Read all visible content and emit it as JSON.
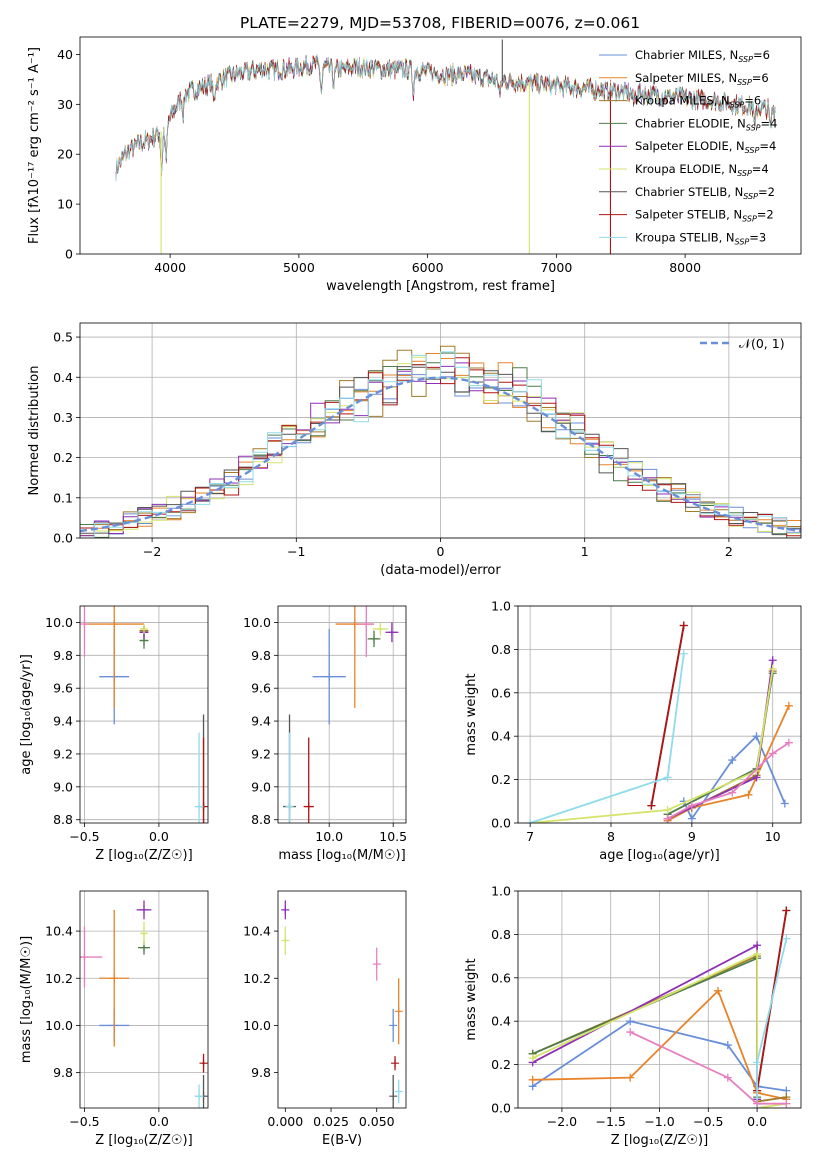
{
  "colors": {
    "c0": "#6a8fd9",
    "c1": "#e8832a",
    "c2": "#a17a2a",
    "c3": "#4f7d4a",
    "c4": "#8e2fb5",
    "c5": "#d6e36a",
    "c6": "#555555",
    "c7": "#b01515",
    "c8": "#8fdcea",
    "c9": "#e77fbf",
    "spectrum": [
      "#6a8fd9",
      "#e8832a",
      "#a17a2a",
      "#4f7d4a",
      "#8e2fb5",
      "#d6e36a",
      "#555555",
      "#b01515",
      "#8fdcea"
    ]
  },
  "chart_data": [
    {
      "id": "spectrum",
      "type": "line",
      "title": "PLATE=2279, MJD=53708, FIBERID=0076, z=0.061",
      "xlabel": "wavelength [Angstrom, rest frame]",
      "ylabel": "Flux [fλ10⁻¹⁷ erg cm⁻² s⁻¹ A⁻¹]",
      "xlim": [
        3300,
        8900
      ],
      "ylim": [
        0,
        43.5
      ],
      "xticks": [
        "4000",
        "5000",
        "6000",
        "7000",
        "8000"
      ],
      "yticks": [
        "0",
        "10",
        "20",
        "30",
        "40"
      ],
      "grid": false,
      "legend_position": "top-right",
      "legend": [
        "Chabrier MILES, N_SSP=6",
        "Salpeter MILES, N_SSP=6",
        "Kroupa MILES, N_SSP=6",
        "Chabrier ELODIE, N_SSP=4",
        "Salpeter ELODIE, N_SSP=4",
        "Kroupa ELODIE, N_SSP=4",
        "Chabrier STELIB, N_SSP=2",
        "Salpeter STELIB, N_SSP=2",
        "Kroupa STELIB, N_SSP=3"
      ],
      "continuum": [
        [
          3580,
          17
        ],
        [
          3650,
          20
        ],
        [
          3750,
          22
        ],
        [
          3850,
          23
        ],
        [
          3950,
          25
        ],
        [
          4100,
          32
        ],
        [
          4300,
          34
        ],
        [
          4500,
          36
        ],
        [
          4700,
          37
        ],
        [
          4900,
          37
        ],
        [
          5100,
          38
        ],
        [
          5300,
          37
        ],
        [
          5500,
          37.5
        ],
        [
          5700,
          37
        ],
        [
          5900,
          37
        ],
        [
          6100,
          36
        ],
        [
          6300,
          36
        ],
        [
          6500,
          35
        ],
        [
          6700,
          34.5
        ],
        [
          6900,
          34
        ],
        [
          7100,
          33.5
        ],
        [
          7300,
          33
        ],
        [
          7500,
          32.5
        ],
        [
          7700,
          32
        ],
        [
          7900,
          31.5
        ],
        [
          8100,
          31
        ],
        [
          8300,
          30.5
        ],
        [
          8500,
          29.5
        ],
        [
          8700,
          29
        ]
      ],
      "absorption_lines": [
        [
          3934,
          8
        ],
        [
          3969,
          7
        ],
        [
          4102,
          4
        ],
        [
          4340,
          4
        ],
        [
          5175,
          5
        ],
        [
          5270,
          3
        ],
        [
          5890,
          4
        ],
        [
          6563,
          3
        ],
        [
          7600,
          2
        ],
        [
          8542,
          4
        ],
        [
          8662,
          4
        ]
      ],
      "sharp_features": [
        [
          3930,
          0,
          "#d6e36a"
        ],
        [
          6790,
          0,
          "#d6e36a"
        ],
        [
          7420,
          0,
          "#b01515"
        ],
        [
          6580,
          43,
          "#555555"
        ]
      ]
    },
    {
      "id": "residuals",
      "type": "histogram",
      "xlabel": "(data-model)/error",
      "ylabel": "Normed distribution",
      "xlim": [
        -2.5,
        2.5
      ],
      "ylim": [
        0,
        0.535
      ],
      "xticks": [
        "−2",
        "−1",
        "0",
        "1",
        "2"
      ],
      "yticks": [
        "0.0",
        "0.1",
        "0.2",
        "0.3",
        "0.4",
        "0.5"
      ],
      "grid": true,
      "legend_position": "top-right",
      "legend": [
        "𝒩(0, 1)"
      ],
      "bin_width": 0.1,
      "reference_curve": "gaussian(0,1)"
    },
    {
      "id": "age_vs_Z",
      "type": "scatter",
      "xlabel": "Z [log₁₀(Z/Z☉)]",
      "ylabel": "age  [log₁₀(age/yr)]",
      "xlim": [
        -0.53,
        0.33
      ],
      "ylim": [
        8.78,
        10.1
      ],
      "xticks": [
        "−0.5",
        "0.0"
      ],
      "yticks": [
        "8.8",
        "9.0",
        "9.2",
        "9.4",
        "9.6",
        "9.8",
        "10.0"
      ],
      "grid": true,
      "points": [
        {
          "x": -0.3,
          "y": 9.67,
          "xerr": 0.1,
          "yerr": 0.29,
          "color": "c0"
        },
        {
          "x": -0.3,
          "y": 9.99,
          "xerr": 0.2,
          "yerr": 0.51,
          "color": "c1"
        },
        {
          "x": -0.1,
          "y": 9.95,
          "xerr": 0.03,
          "yerr": 0.03,
          "color": "c2"
        },
        {
          "x": -0.1,
          "y": 9.89,
          "xerr": 0.03,
          "yerr": 0.05,
          "color": "c3"
        },
        {
          "x": -0.1,
          "y": 9.94,
          "xerr": 0.03,
          "yerr": 0.04,
          "color": "c4"
        },
        {
          "x": -0.1,
          "y": 9.96,
          "xerr": 0.02,
          "yerr": 0.03,
          "color": "c5"
        },
        {
          "x": 0.3,
          "y": 8.88,
          "xerr": 0.01,
          "yerr": 0.56,
          "color": "c6"
        },
        {
          "x": 0.3,
          "y": 8.88,
          "xerr": 0.01,
          "yerr": 0.42,
          "color": "c7"
        },
        {
          "x": 0.27,
          "y": 8.88,
          "xerr": 0.03,
          "yerr": 0.45,
          "color": "c8"
        },
        {
          "x": -0.5,
          "y": 9.99,
          "xerr": 0.01,
          "yerr": 0.2,
          "color": "c9"
        }
      ]
    },
    {
      "id": "age_vs_mass",
      "type": "scatter",
      "xlabel": "mass [log₁₀(M/M☉)]",
      "ylabel": "",
      "xlim": [
        9.6,
        10.6
      ],
      "ylim": [
        8.78,
        10.1
      ],
      "xticks": [
        "9.0",
        "9.5",
        "10.0",
        "10.5"
      ],
      "ytick_values": [
        "8.8",
        "9.0",
        "9.2",
        "9.4",
        "9.6",
        "9.8",
        "10.0"
      ],
      "grid": true,
      "points": [
        {
          "x": 10.0,
          "y": 9.67,
          "xerr": 0.13,
          "yerr": 0.29,
          "color": "c0"
        },
        {
          "x": 10.2,
          "y": 9.99,
          "xerr": 0.15,
          "yerr": 0.51,
          "color": "c1"
        },
        {
          "x": 10.35,
          "y": 9.9,
          "xerr": 0.05,
          "yerr": 0.05,
          "color": "c3"
        },
        {
          "x": 10.49,
          "y": 9.94,
          "xerr": 0.05,
          "yerr": 0.06,
          "color": "c4"
        },
        {
          "x": 10.4,
          "y": 9.96,
          "xerr": 0.06,
          "yerr": 0.04,
          "color": "c5"
        },
        {
          "x": 9.69,
          "y": 8.88,
          "xerr": 0.05,
          "yerr": 0.56,
          "color": "c6"
        },
        {
          "x": 9.84,
          "y": 8.88,
          "xerr": 0.04,
          "yerr": 0.42,
          "color": "c7"
        },
        {
          "x": 9.69,
          "y": 8.88,
          "xerr": 0.03,
          "yerr": 0.45,
          "color": "c8"
        },
        {
          "x": 10.29,
          "y": 9.99,
          "xerr": 0.06,
          "yerr": 0.2,
          "color": "c9"
        }
      ]
    },
    {
      "id": "weight_vs_age",
      "type": "line",
      "xlabel": "age  [log₁₀(age/yr)]",
      "ylabel": "mass weight",
      "xlim": [
        6.85,
        10.35
      ],
      "ylim": [
        0,
        1.0
      ],
      "xticks": [
        "7",
        "8",
        "9",
        "10"
      ],
      "yticks": [
        "0.0",
        "0.2",
        "0.4",
        "0.6",
        "0.8",
        "1.0"
      ],
      "grid": true,
      "series": [
        {
          "color": "c0",
          "points": [
            [
              8.9,
              0.1
            ],
            [
              9.0,
              0.02
            ],
            [
              9.5,
              0.29
            ],
            [
              9.8,
              0.4
            ],
            [
              10.15,
              0.09
            ]
          ]
        },
        {
          "color": "c1",
          "points": [
            [
              8.7,
              0.01
            ],
            [
              9.0,
              0.07
            ],
            [
              9.7,
              0.13
            ],
            [
              10.2,
              0.54
            ]
          ]
        },
        {
          "color": "c2",
          "points": [
            [
              8.7,
              0.02
            ],
            [
              9.0,
              0.07
            ],
            [
              9.8,
              0.22
            ],
            [
              10.0,
              0.7
            ]
          ]
        },
        {
          "color": "c3",
          "points": [
            [
              8.7,
              0.04
            ],
            [
              9.8,
              0.25
            ],
            [
              10.0,
              0.69
            ]
          ]
        },
        {
          "color": "c4",
          "points": [
            [
              8.7,
              0.02
            ],
            [
              9.8,
              0.21
            ],
            [
              10.0,
              0.75
            ]
          ]
        },
        {
          "color": "c5",
          "points": [
            [
              7.0,
              0.0
            ],
            [
              8.7,
              0.06
            ],
            [
              9.8,
              0.24
            ],
            [
              10.0,
              0.71
            ]
          ]
        },
        {
          "color": "c6",
          "points": [
            [
              8.5,
              0.08
            ],
            [
              8.9,
              0.91
            ]
          ]
        },
        {
          "color": "c7",
          "points": [
            [
              8.5,
              0.08
            ],
            [
              8.9,
              0.91
            ]
          ]
        },
        {
          "color": "c8",
          "points": [
            [
              7.0,
              0.0
            ],
            [
              8.7,
              0.21
            ],
            [
              8.9,
              0.78
            ]
          ]
        },
        {
          "color": "c9",
          "points": [
            [
              8.7,
              0.02
            ],
            [
              9.0,
              0.08
            ],
            [
              9.5,
              0.14
            ],
            [
              10.0,
              0.32
            ],
            [
              10.2,
              0.37
            ]
          ]
        }
      ]
    },
    {
      "id": "mass_vs_Z",
      "type": "scatter",
      "xlabel": "Z [log₁₀(Z/Z☉)]",
      "ylabel": "mass [log₁₀(M/M☉)]",
      "xlim": [
        -0.53,
        0.33
      ],
      "ylim": [
        9.65,
        10.57
      ],
      "xticks": [
        "−0.5",
        "0.0"
      ],
      "yticks": [
        "9.8",
        "10.0",
        "10.2",
        "10.4"
      ],
      "grid": true,
      "points": [
        {
          "x": -0.3,
          "y": 10.0,
          "xerr": 0.1,
          "yerr": 0.07,
          "color": "c0"
        },
        {
          "x": -0.3,
          "y": 10.2,
          "xerr": 0.1,
          "yerr": 0.29,
          "color": "c1"
        },
        {
          "x": -0.1,
          "y": 10.33,
          "xerr": 0.04,
          "yerr": 0.03,
          "color": "c3"
        },
        {
          "x": -0.1,
          "y": 10.49,
          "xerr": 0.05,
          "yerr": 0.04,
          "color": "c4"
        },
        {
          "x": -0.1,
          "y": 10.39,
          "xerr": 0.02,
          "yerr": 0.05,
          "color": "c5"
        },
        {
          "x": 0.3,
          "y": 9.7,
          "xerr": 0.01,
          "yerr": 0.09,
          "color": "c6"
        },
        {
          "x": 0.3,
          "y": 9.84,
          "xerr": 0.01,
          "yerr": 0.04,
          "color": "c7"
        },
        {
          "x": 0.27,
          "y": 9.7,
          "xerr": 0.03,
          "yerr": 0.05,
          "color": "c8"
        },
        {
          "x": -0.5,
          "y": 10.29,
          "xerr": 0.12,
          "yerr": 0.13,
          "color": "c9"
        }
      ]
    },
    {
      "id": "mass_vs_ebv",
      "type": "scatter",
      "xlabel": "E(B-V)",
      "ylabel": "",
      "xlim": [
        -0.004,
        0.066
      ],
      "ylim": [
        9.65,
        10.57
      ],
      "xticks": [
        "0.000",
        "0.025",
        "0.050"
      ],
      "ytick_values": [
        "9.8",
        "10.0",
        "10.2",
        "10.4"
      ],
      "grid": false,
      "points": [
        {
          "x": 0.059,
          "y": 10.0,
          "yerr": 0.07,
          "color": "c0"
        },
        {
          "x": 0.062,
          "y": 10.06,
          "yerr": 0.14,
          "color": "c1"
        },
        {
          "x": 0.0,
          "y": 10.49,
          "yerr": 0.04,
          "color": "c4"
        },
        {
          "x": 0.0,
          "y": 10.36,
          "yerr": 0.06,
          "color": "c5"
        },
        {
          "x": 0.059,
          "y": 9.7,
          "yerr": 0.09,
          "color": "c6"
        },
        {
          "x": 0.06,
          "y": 9.84,
          "yerr": 0.03,
          "color": "c7"
        },
        {
          "x": 0.062,
          "y": 9.72,
          "yerr": 0.05,
          "color": "c8"
        },
        {
          "x": 0.05,
          "y": 10.26,
          "yerr": 0.07,
          "color": "c9"
        }
      ]
    },
    {
      "id": "weight_vs_Z",
      "type": "line",
      "xlabel": "Z [log₁₀(Z/Z☉)]",
      "ylabel": "mass weight",
      "xlim": [
        -2.45,
        0.45
      ],
      "ylim": [
        0,
        1.0
      ],
      "xticks": [
        "−2.0",
        "−1.5",
        "−1.0",
        "−0.5",
        "0.0"
      ],
      "yticks": [
        "0.0",
        "0.2",
        "0.4",
        "0.6",
        "0.8",
        "1.0"
      ],
      "grid": true,
      "series": [
        {
          "color": "c0",
          "points": [
            [
              -2.3,
              0.1
            ],
            [
              -1.3,
              0.4
            ],
            [
              -0.3,
              0.29
            ],
            [
              0.0,
              0.1
            ],
            [
              0.3,
              0.08
            ]
          ]
        },
        {
          "color": "c1",
          "points": [
            [
              -2.3,
              0.13
            ],
            [
              -1.3,
              0.14
            ],
            [
              -0.4,
              0.54
            ],
            [
              0.0,
              0.07
            ],
            [
              0.3,
              0.04
            ]
          ]
        },
        {
          "color": "c2",
          "points": [
            [
              -2.3,
              0.25
            ],
            [
              0.0,
              0.7
            ],
            [
              0.0,
              0.03
            ],
            [
              0.3,
              0.05
            ]
          ]
        },
        {
          "color": "c3",
          "points": [
            [
              -2.3,
              0.25
            ],
            [
              0.0,
              0.69
            ],
            [
              0.0,
              0.05
            ]
          ]
        },
        {
          "color": "c4",
          "points": [
            [
              -2.3,
              0.21
            ],
            [
              0.0,
              0.75
            ],
            [
              0.0,
              0.04
            ]
          ]
        },
        {
          "color": "c5",
          "points": [
            [
              -2.3,
              0.23
            ],
            [
              0.0,
              0.71
            ],
            [
              0.0,
              0.0
            ],
            [
              0.3,
              0.02
            ]
          ]
        },
        {
          "color": "c6",
          "points": [
            [
              0.0,
              0.08
            ],
            [
              0.3,
              0.91
            ]
          ]
        },
        {
          "color": "c7",
          "points": [
            [
              0.0,
              0.08
            ],
            [
              0.3,
              0.91
            ]
          ]
        },
        {
          "color": "c8",
          "points": [
            [
              0.0,
              0.0
            ],
            [
              0.0,
              0.21
            ],
            [
              0.3,
              0.78
            ]
          ]
        },
        {
          "color": "c9",
          "points": [
            [
              -1.3,
              0.35
            ],
            [
              -0.3,
              0.14
            ],
            [
              0.0,
              0.02
            ],
            [
              0.3,
              0.02
            ]
          ]
        }
      ]
    }
  ]
}
